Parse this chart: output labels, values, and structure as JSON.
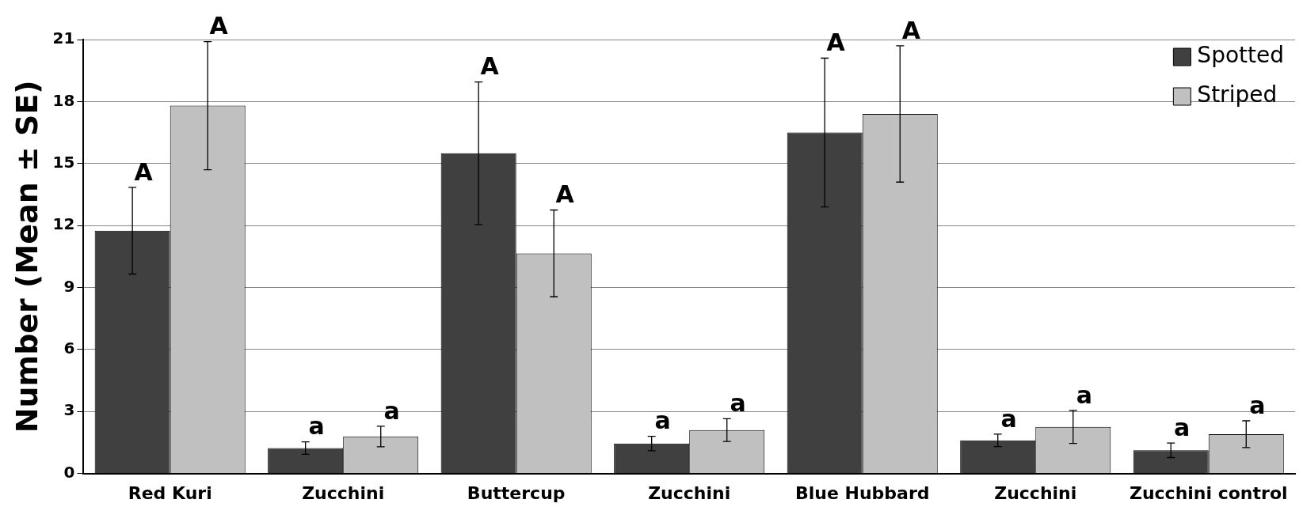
{
  "chart_data": {
    "type": "bar",
    "ylabel": "Number (Mean ± SE)",
    "categories": [
      "Red Kuri",
      "Zucchini",
      "Buttercup",
      "Zucchini",
      "Blue Hubbard",
      "Zucchini",
      "Zucchini control"
    ],
    "series": [
      {
        "name": "Spotted",
        "color": "#404040",
        "values": [
          11.75,
          1.23,
          15.5,
          1.45,
          16.5,
          1.6,
          1.12
        ],
        "errors": [
          2.1,
          0.3,
          3.45,
          0.35,
          3.6,
          0.3,
          0.35
        ]
      },
      {
        "name": "Striped",
        "color": "#c0c0c0",
        "values": [
          17.8,
          1.79,
          10.65,
          2.1,
          17.4,
          2.25,
          1.9
        ],
        "errors": [
          3.1,
          0.5,
          2.1,
          0.55,
          3.3,
          0.8,
          0.65
        ]
      }
    ],
    "annotations": [
      "A",
      "A",
      "a",
      "a",
      "A",
      "A",
      "a",
      "a",
      "A",
      "A",
      "a",
      "a",
      "a",
      "a"
    ],
    "ylim": [
      0,
      21
    ],
    "yticks": [
      0,
      3,
      6,
      9,
      12,
      15,
      18,
      21
    ],
    "grid": "y",
    "legend": "top right"
  }
}
